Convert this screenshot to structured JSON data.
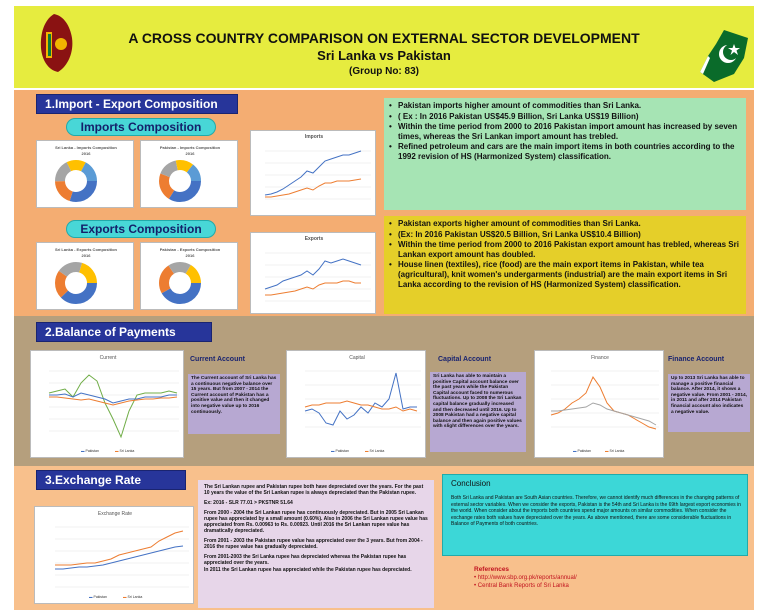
{
  "header": {
    "title": "A CROSS COUNTRY COMPARISON ON EXTERNAL SECTOR DEVELOPMENT",
    "subtitle": "Sri Lanka vs Pakistan",
    "group": "(Group No: 83)"
  },
  "section1": {
    "title": "1.Import - Export Composition",
    "imports_label": "Imports Composition",
    "exports_label": "Exports Composition",
    "imports_charts": {
      "sl_title": "Sri Lanka - Imports Composition",
      "sl_year": "2016",
      "pk_title": "Pakistan - Imports Composition",
      "pk_year": "2016",
      "line_title": "Imports"
    },
    "exports_charts": {
      "sl_title": "Sri Lanka - Exports Composition",
      "sl_year": "2016",
      "pk_title": "Pakistan - Exports Composition",
      "pk_year": "2016",
      "line_title": "Exports"
    },
    "imports_points": [
      "Pakistan imports higher amount of commodities than  Sri Lanka.",
      "( Ex : In 2016 Pakistan US$45.9 Billion, Sri Lanka US$19 Billion)",
      "Within the time period from 2000 to 2016 Pakistan import amount has increased by seven times, whereas the Sri Lankan import amount has trebled.",
      "Refined petroleum and cars are the main import items in both countries according to the 1992 revision of HS (Harmonized System) classification."
    ],
    "exports_points": [
      "Pakistan exports higher amount of commodities than Sri Lanka.",
      "(Ex: In 2016 Pakistan US$20.5 Billion, Sri Lanka US$10.4 Billion)",
      "Within the time period from 2000 to 2016 Pakistan export amount has trebled, whereas Sri Lankan export amount has doubled.",
      "House linen (textiles), rice (food) are the main export items in Pakistan, while tea (agricultural), knit women's undergarments (industrial) are the main export items in Sri Lanka according to the revision of HS (Harmonized System) classification."
    ]
  },
  "section2": {
    "title": "2.Balance of Payments",
    "current": {
      "chart_title": "Current",
      "label": "Current Account",
      "text": "The Current account of Sri Lanka has a continuous negative balance over 15 years. But from 2007 - 2014 the Current account of Pakistan has a positive value and then it changed into negative value up to 2016 continuously.",
      "legend": [
        "Pakistan",
        "Sri Lanka"
      ]
    },
    "capital": {
      "chart_title": "Capital",
      "label": "Capital Account",
      "text": "Sri Lanka has able to maintain a positive Capital account balance over the past years while the Pakistan Capital account faced to numerous fluctuations. Up to 2008 the Sri Lankan capital balance gradually increased and then decreased until 2016. Up to 2008 Pakistan had a negative capital balance and then again positive values with slight differences over the years.",
      "legend": [
        "Pakistan",
        "Sri Lanka"
      ]
    },
    "finance": {
      "chart_title": "Finance",
      "label": "Finance Account",
      "text": "Up to 2013 Sri Lanka has able to manage a positive financial balance. After 2014, it shows a negative value. From 2001 - 2014, in 2011 and after 2014 Pakistan financial account also indicates a negative value.",
      "legend": [
        "Pakistan",
        "Sri Lanka"
      ]
    }
  },
  "section3": {
    "title": "3.Exchange Rate",
    "chart_title": "Exchange Rate",
    "legend": [
      "Pakistan",
      "Sri Lanka"
    ],
    "text_blocks": [
      "The Sri Lankan rupee and Pakistan rupee both have depreciated over the years. For the past 10 years the value of the Sri Lankan rupee is always depreciated than the Pakistan rupee.",
      "Ex: 2016 - SLR 77.01 > PKSTNR 51.64",
      "From 2000 - 2004 the Sri Lankan rupee has continuously depreciated. But in 2005 Sri Lankan rupee has appreciated by a small amount (0.60%). Also in 2006 the Sri Lankan rupee value has appreciated from Rs. 0.00963 to Rs. 0.00923. Until 2016 the Sri Lankan rupee value has dramatically depreciated.",
      "From 2001 - 2003 the Pakistan rupee value has appreciated over the 3 years. But from 2004 - 2016 the rupee value has gradually depreciated.",
      "From 2001-2003 the Sri Lanka rupee has depreciated whereas the Pakistan rupee has appreciated over the years.",
      "In 2011 the Sri Lankan rupee has appreciated while the Pakistan rupee has depreciated."
    ]
  },
  "conclusion": {
    "title": "Conclusion",
    "text": "Both Sri Lanka and Pakistan are South Asian countries. Therefore, we cannot identify much differences in the changing patterns of external sector variables. When we consider the exports, Pakistan is the 54th and Sri Lanka is the 69th largest export economies in the world. When consider about the imports both countries spend major amounts on similar commodities. When consider the exchange rates both values have depreciated over the years. As above mentioned, there are some considerable fluctuations in Balance of Payments of both countries."
  },
  "references": {
    "title": "References",
    "items": [
      "http://www.sbp.org.pk/reports/annual/",
      "Central Bank Reports of Sri Lanka"
    ]
  },
  "colors": {
    "header_bg": "#e6ec3f",
    "section1_bg": "#f4ad72",
    "section2_bg": "#b59f7d",
    "section3_bg": "#f8c08c",
    "title_bar": "#27359a",
    "pill": "#48d7d7",
    "pakistan_line": "#4472c4",
    "srilanka_line": "#ed7d31"
  }
}
